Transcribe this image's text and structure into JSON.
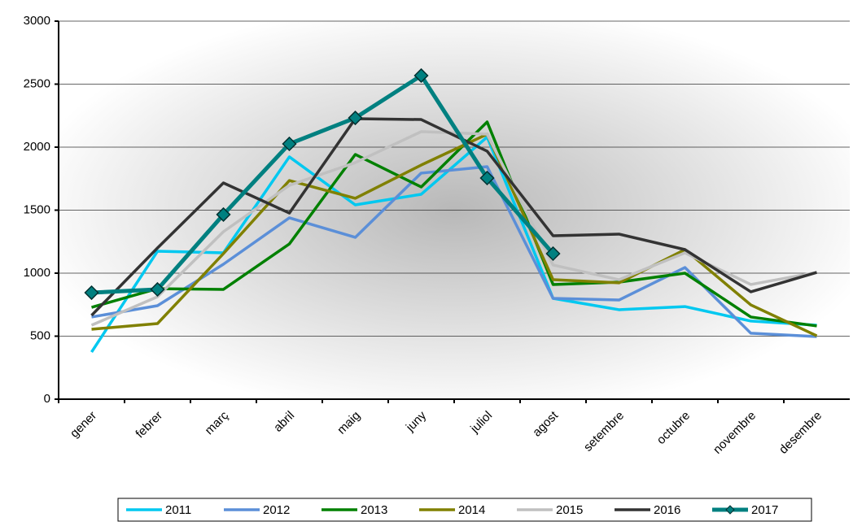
{
  "chart_data": {
    "type": "line",
    "categories": [
      "gener",
      "febrer",
      "març",
      "abril",
      "maig",
      "juny",
      "juliol",
      "agost",
      "setembre",
      "octubre",
      "novembre",
      "desembre"
    ],
    "ylim": [
      0,
      3000
    ],
    "yticks": [
      0,
      500,
      1000,
      1500,
      2000,
      2500,
      3000
    ],
    "grid": true,
    "legend": "bottom",
    "series": [
      {
        "name": "2011",
        "color": "#00c8f0",
        "values": [
          374,
          1174,
          1161,
          1923,
          1542,
          1626,
          2080,
          800,
          710,
          735,
          620,
          587
        ]
      },
      {
        "name": "2012",
        "color": "#5b8fd8",
        "values": [
          652,
          742,
          1071,
          1439,
          1284,
          1794,
          1845,
          800,
          787,
          1045,
          523,
          497
        ]
      },
      {
        "name": "2013",
        "color": "#008000",
        "values": [
          729,
          877,
          871,
          1232,
          1942,
          1684,
          2200,
          910,
          929,
          1000,
          652,
          581
        ]
      },
      {
        "name": "2014",
        "color": "#808000",
        "values": [
          555,
          600,
          1155,
          1735,
          1594,
          1858,
          2103,
          948,
          923,
          1187,
          748,
          503
        ]
      },
      {
        "name": "2015",
        "color": "#c0c0c0",
        "values": [
          587,
          813,
          1329,
          1697,
          1877,
          2123,
          2103,
          1065,
          948,
          1161,
          910,
          1006
        ]
      },
      {
        "name": "2016",
        "color": "#333333",
        "values": [
          665,
          1200,
          1716,
          1477,
          2226,
          2219,
          1968,
          1297,
          1310,
          1187,
          852,
          1006
        ]
      },
      {
        "name": "2017",
        "color": "#008080",
        "values": [
          845,
          871,
          1465,
          2026,
          2232,
          2568,
          1755,
          1155,
          null,
          null,
          null,
          null
        ],
        "markers": true
      }
    ]
  }
}
